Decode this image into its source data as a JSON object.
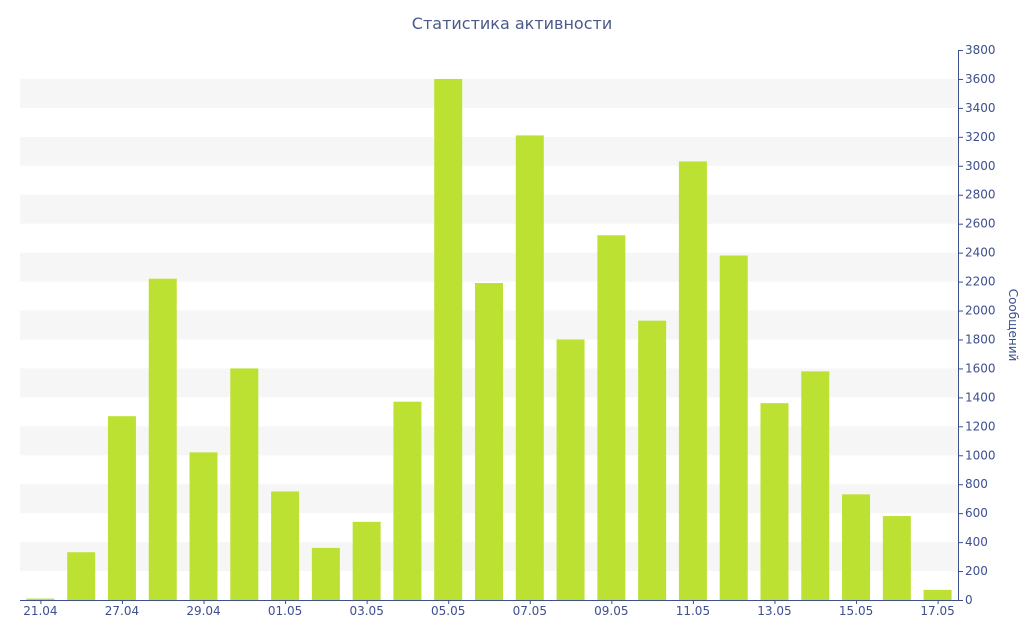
{
  "chart_data": {
    "type": "bar",
    "title": "Статистика активности",
    "ylabel": "Сообщений",
    "xlabel": "",
    "ylim": [
      0,
      3800
    ],
    "y_ticks": [
      0,
      200,
      400,
      600,
      800,
      1000,
      1200,
      1400,
      1600,
      1800,
      2000,
      2200,
      2400,
      2600,
      2800,
      3000,
      3200,
      3400,
      3600,
      3800
    ],
    "y_axis_position": "right",
    "grid": "alternating horizontal bands",
    "categories": [
      "21.04",
      "",
      "27.04",
      "",
      "29.04",
      "",
      "01.05",
      "",
      "03.05",
      "",
      "05.05",
      "",
      "07.05",
      "",
      "09.05",
      "",
      "11.05",
      "",
      "13.05",
      "",
      "15.05",
      "",
      "17.05"
    ],
    "values": [
      10,
      330,
      1270,
      2220,
      1020,
      1600,
      750,
      360,
      540,
      1370,
      3600,
      2190,
      3210,
      1800,
      2520,
      1930,
      3030,
      2380,
      1360,
      1580,
      730,
      580,
      70
    ],
    "colors": {
      "bar": "#bce133",
      "axis": "#3d4f8f",
      "band": "#f6f6f6"
    }
  }
}
